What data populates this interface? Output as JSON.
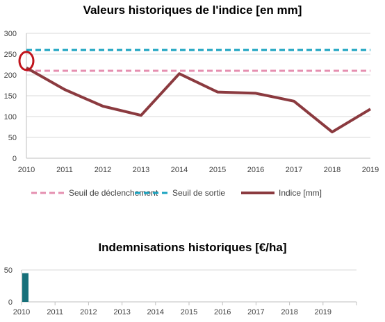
{
  "chart_data": [
    {
      "type": "line",
      "title": "Valeurs historiques de l'indice [en mm]",
      "x": [
        2010,
        2011,
        2012,
        2013,
        2014,
        2015,
        2016,
        2017,
        2018,
        2019
      ],
      "ylim": [
        0,
        300
      ],
      "yticks": [
        0,
        50,
        100,
        150,
        200,
        250,
        300
      ],
      "grid": true,
      "legend_position": "bottom",
      "series": [
        {
          "name": "Seuil de déclenchement",
          "values": [
            210,
            210,
            210,
            210,
            210,
            210,
            210,
            210,
            210,
            210
          ],
          "color": "#e58fb0",
          "style": "dashed"
        },
        {
          "name": "Seuil de sortie",
          "values": [
            260,
            260,
            260,
            260,
            260,
            260,
            260,
            260,
            260,
            260
          ],
          "color": "#1aa3c0",
          "style": "dashed"
        },
        {
          "name": "Indice [mm]",
          "values": [
            217,
            165,
            125,
            103,
            203,
            159,
            156,
            137,
            63,
            118
          ],
          "color": "#8b3a3f",
          "style": "solid"
        }
      ],
      "highlight": {
        "x": 2010,
        "y": 217,
        "color": "#c0141c"
      }
    },
    {
      "type": "bar",
      "title": "Indemnisations historiques [€/ha]",
      "categories": [
        "2010",
        "2011",
        "2012",
        "2013",
        "2014",
        "2015",
        "2016",
        "2017",
        "2018",
        "2019"
      ],
      "values": [
        45,
        0,
        0,
        0,
        0,
        0,
        0,
        0,
        0,
        0
      ],
      "ylim": [
        0,
        50
      ],
      "yticks": [
        0,
        50
      ],
      "grid": true,
      "color": "#17707a"
    }
  ]
}
